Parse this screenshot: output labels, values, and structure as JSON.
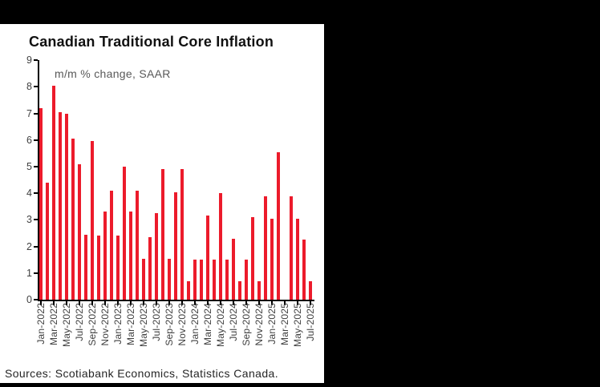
{
  "window": {
    "background_color": "#000000",
    "card_color": "#ffffff"
  },
  "chart": {
    "title": "Canadian Traditional Core Inflation",
    "subtitle": "m/m % change, SAAR",
    "source_note": "Sources: Scotiabank Economics, Statistics Canada.",
    "bar_color": "#EC1B2B",
    "axis_color": "#000000",
    "tick_label_color": "#404040",
    "subtitle_color": "#595959"
  },
  "chart_data": {
    "type": "bar",
    "title": "Canadian Traditional Core Inflation",
    "subtitle": "m/m % change, SAAR",
    "xlabel": "",
    "ylabel": "",
    "ylim": [
      0,
      9
    ],
    "y_ticks": [
      0,
      1,
      2,
      3,
      4,
      5,
      6,
      7,
      8,
      9
    ],
    "grid": false,
    "legend": false,
    "bar_color": "#EC1B2B",
    "categories": [
      "Jan-2022",
      "Feb-2022",
      "Mar-2022",
      "Apr-2022",
      "May-2022",
      "Jun-2022",
      "Jul-2022",
      "Aug-2022",
      "Sep-2022",
      "Oct-2022",
      "Nov-2022",
      "Dec-2022",
      "Jan-2023",
      "Feb-2023",
      "Mar-2023",
      "Apr-2023",
      "May-2023",
      "Jun-2023",
      "Jul-2023",
      "Aug-2023",
      "Sep-2023",
      "Oct-2023",
      "Nov-2023",
      "Dec-2023",
      "Jan-2024",
      "Feb-2024",
      "Mar-2024",
      "Apr-2024",
      "May-2024",
      "Jun-2024",
      "Jul-2024",
      "Aug-2024",
      "Sep-2024",
      "Oct-2024",
      "Nov-2024",
      "Dec-2024",
      "Jan-2025",
      "Feb-2025",
      "Mar-2025",
      "Apr-2025",
      "May-2025",
      "Jun-2025",
      "Jul-2025"
    ],
    "values": [
      7.2,
      4.4,
      8.05,
      7.05,
      7.0,
      6.05,
      5.1,
      2.45,
      5.95,
      2.4,
      3.3,
      4.1,
      2.4,
      5.0,
      3.3,
      4.1,
      1.55,
      2.35,
      3.25,
      4.9,
      1.55,
      4.05,
      4.9,
      0.7,
      1.5,
      1.5,
      3.15,
      1.5,
      4.0,
      1.5,
      2.3,
      0.7,
      1.5,
      3.1,
      0.7,
      3.9,
      3.05,
      5.55,
      0.0,
      3.9,
      3.05,
      2.25,
      0.7
    ],
    "x_tick_labels": [
      "Jan-2022",
      "Mar-2022",
      "May-2022",
      "Jul-2022",
      "Sep-2022",
      "Nov-2022",
      "Jan-2023",
      "Mar-2023",
      "May-2023",
      "Jul-2023",
      "Sep-2023",
      "Nov-2023",
      "Jan-2024",
      "Mar-2024",
      "May-2024",
      "Jul-2024",
      "Sep-2024",
      "Nov-2024",
      "Jan-2025",
      "Mar-2025",
      "May-2025",
      "Jul-2025"
    ],
    "source": "Sources: Scotiabank Economics, Statistics Canada."
  }
}
